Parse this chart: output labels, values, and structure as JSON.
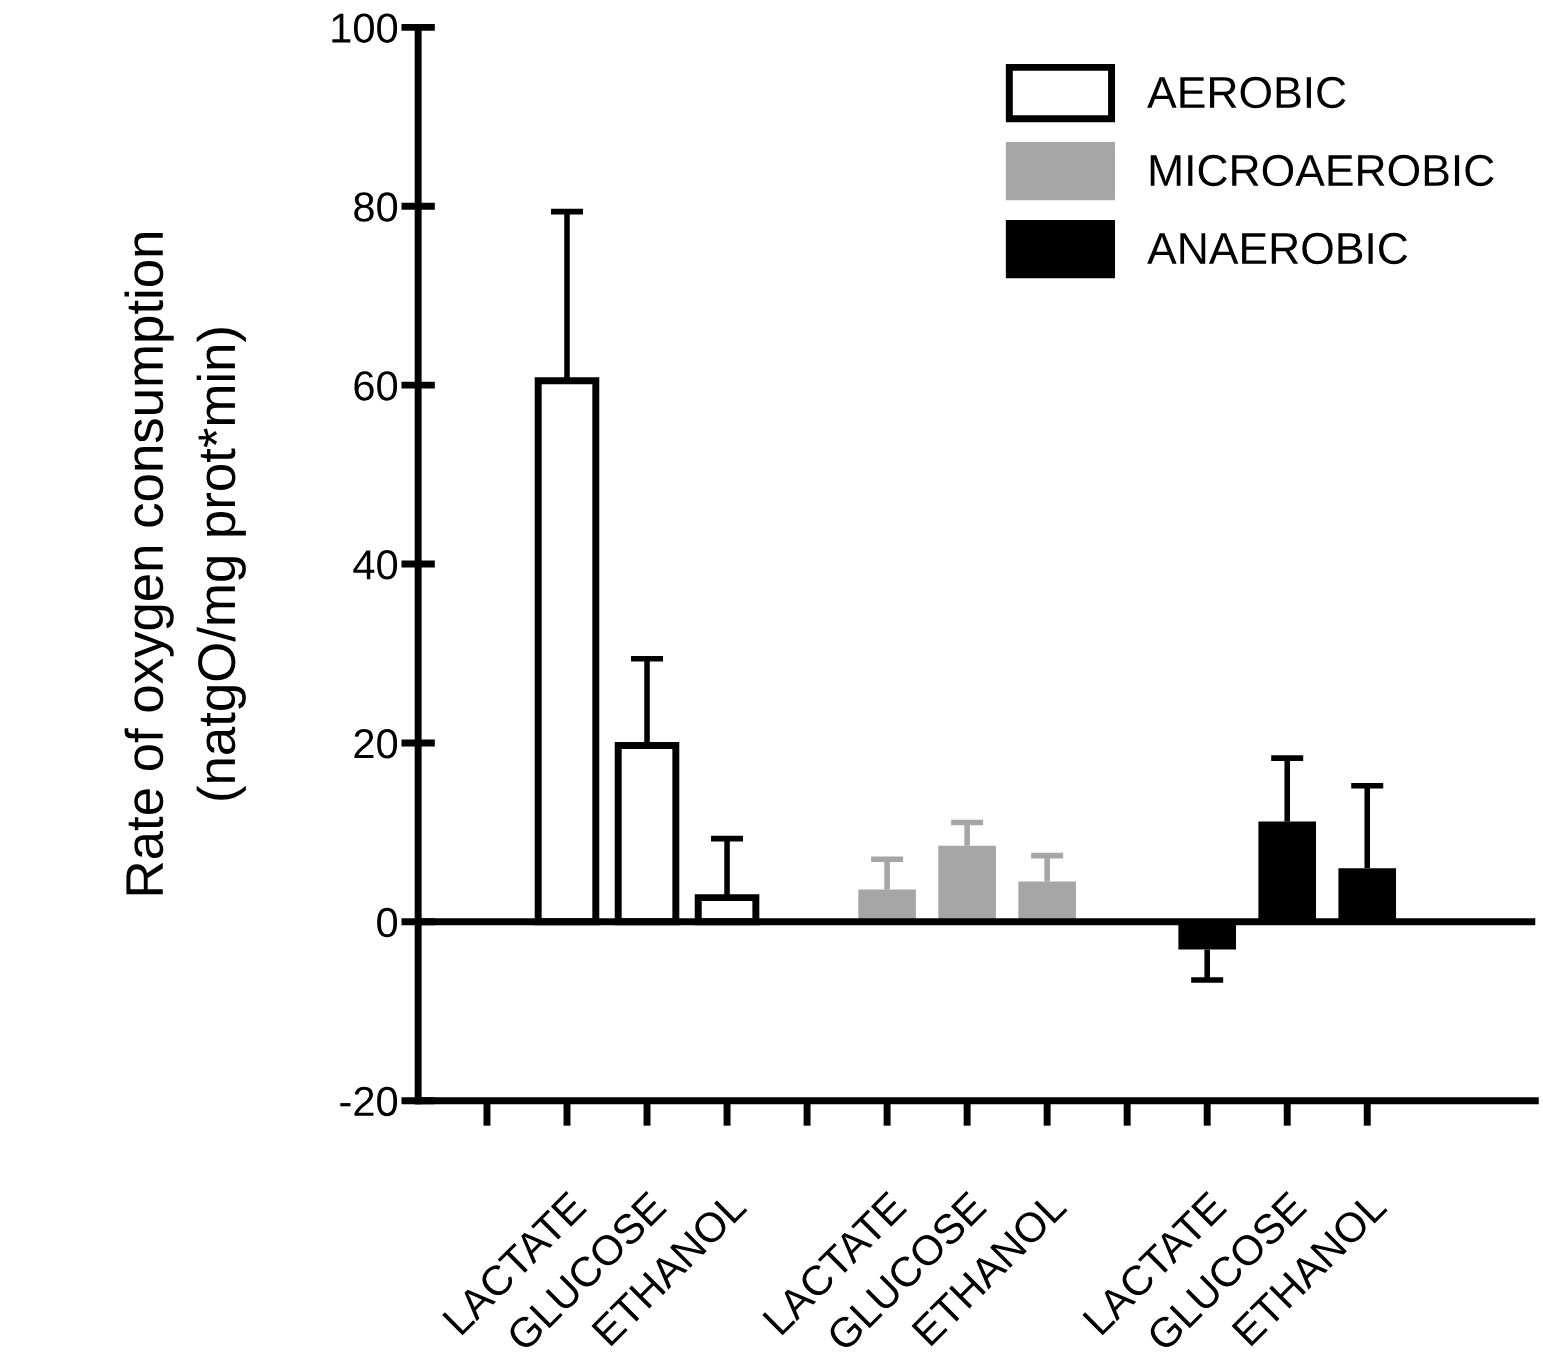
{
  "chart_data": {
    "type": "bar",
    "ylabel": "Rate of oxygen consumption\n(natgO/mg prot*min)",
    "categories": [
      null,
      "LACTATE",
      "GLUCOSE",
      "ETHANOL",
      null,
      "LACTATE",
      "GLUCOSE",
      "ETHANOL",
      null,
      "LACTATE",
      "GLUCOSE",
      "ETHANOL"
    ],
    "series": [
      {
        "name": "AEROBIC",
        "color": "#ffffff",
        "values": [
          null,
          60.5,
          19.7,
          2.7,
          null,
          null,
          null,
          null,
          null,
          null,
          null,
          null
        ],
        "errors": [
          null,
          [
            60.5,
            79.4
          ],
          [
            19.7,
            29.4
          ],
          [
            2.7,
            9.3
          ],
          null,
          null,
          null,
          null,
          null,
          null,
          null,
          null
        ]
      },
      {
        "name": "MICROAEROBIC",
        "color": "#a6a6a6",
        "values": [
          null,
          null,
          null,
          null,
          null,
          3.6,
          8.5,
          4.5,
          null,
          null,
          null,
          null
        ],
        "errors": [
          null,
          null,
          null,
          null,
          null,
          [
            3.6,
            7.0
          ],
          [
            8.5,
            11.1
          ],
          [
            4.5,
            7.4
          ],
          null,
          null,
          null,
          null
        ]
      },
      {
        "name": "ANAEROBIC",
        "color": "#000000",
        "values": [
          null,
          null,
          null,
          null,
          null,
          null,
          null,
          null,
          null,
          -3.1,
          11.2,
          6.0
        ],
        "errors": [
          null,
          null,
          null,
          null,
          null,
          null,
          null,
          null,
          null,
          [
            -6.5,
            -3.1
          ],
          [
            11.2,
            18.3
          ],
          [
            6.0,
            15.2
          ]
        ]
      }
    ],
    "ylim": [
      -20,
      100
    ],
    "yticks": [
      -20,
      0,
      20,
      40,
      60,
      80,
      100
    ],
    "ref_lines": [
      {
        "axis": "y",
        "value": 0,
        "color": "#000000"
      }
    ],
    "grid": false,
    "legend": "top right"
  }
}
